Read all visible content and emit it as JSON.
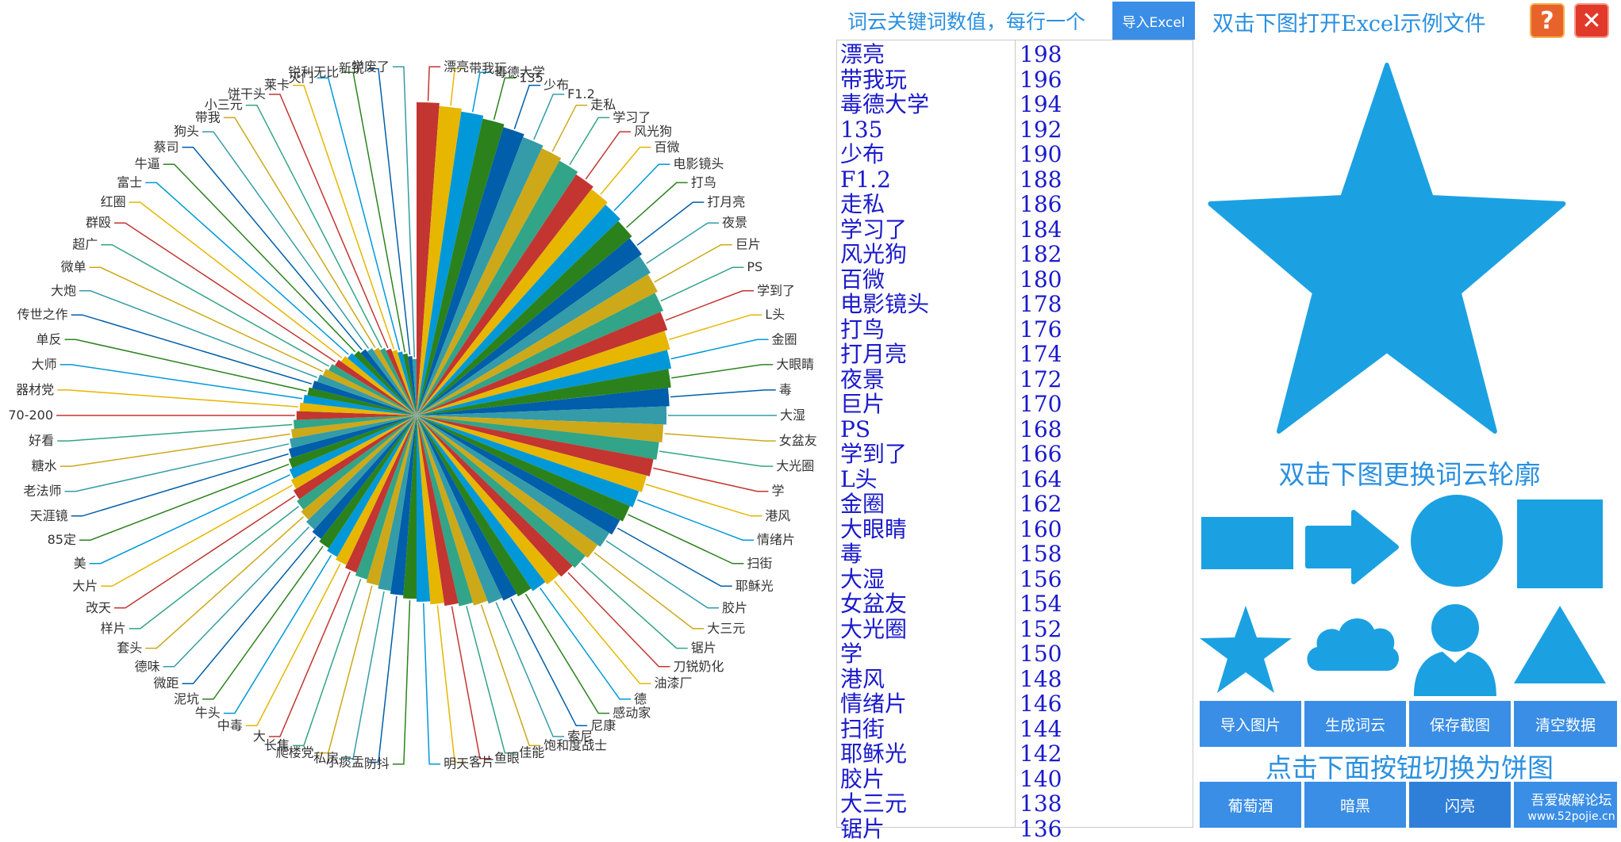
{
  "chart_data": {
    "type": "pie",
    "rose": true,
    "categories": [
      "漂亮",
      "带我玩",
      "毒德大学",
      "135",
      "少布",
      "F1.2",
      "走私",
      "学习了",
      "风光狗",
      "百微",
      "电影镜头",
      "打鸟",
      "打月亮",
      "夜景",
      "巨片",
      "PS",
      "学到了",
      "L头",
      "金圈",
      "大眼睛",
      "毒",
      "大湿",
      "女盆友",
      "大光圈",
      "学",
      "港风",
      "情绪片",
      "扫街",
      "耶稣光",
      "胶片",
      "大三元",
      "锯片",
      "刀锐奶化",
      "油漆厂",
      "德",
      "感动家",
      "尼康",
      "索尼",
      "饱和度战士",
      "佳能",
      "鱼眼",
      "客片",
      "明天",
      "防抖",
      "小痰盂",
      "私房",
      "爬楼党",
      "长焦",
      "大",
      "中毒",
      "牛头",
      "泥坑",
      "微距",
      "德味",
      "套头",
      "样片",
      "改天",
      "大片",
      "美",
      "85定",
      "天涯镜",
      "老法师",
      "糖水",
      "好看",
      "70-200",
      "器材党",
      "大师",
      "单反",
      "传世之作",
      "大炮",
      "微单",
      "超广",
      "群殴",
      "红圈",
      "富士",
      "牛逼",
      "蔡司",
      "狗头",
      "带我",
      "小三元",
      "饼干头",
      "莱卡",
      "灭门",
      "锐利无比",
      "新锐",
      "学废了"
    ],
    "values": [
      198,
      196,
      194,
      192,
      190,
      188,
      186,
      184,
      182,
      180,
      178,
      176,
      174,
      172,
      170,
      168,
      166,
      164,
      162,
      160,
      158,
      156,
      154,
      152,
      150,
      148,
      146,
      144,
      142,
      140,
      138,
      136,
      134,
      132,
      130,
      128,
      126,
      124,
      122,
      120,
      118,
      116,
      114,
      112,
      110,
      108,
      106,
      104,
      102,
      100,
      98,
      96,
      94,
      92,
      90,
      88,
      86,
      84,
      82,
      80,
      78,
      76,
      74,
      72,
      70,
      68,
      66,
      64,
      62,
      60,
      58,
      56,
      54,
      52,
      50,
      48,
      46,
      44,
      42,
      40,
      38,
      36,
      34,
      32,
      30,
      28
    ],
    "colors": [
      "#c23531",
      "#e6b600",
      "#0098d9",
      "#2b821d",
      "#005eaa",
      "#339ca8",
      "#cda819",
      "#32a487"
    ]
  },
  "keyword_panel": {
    "hint": "词云关键词数值，每行一个",
    "import_excel_label": "导入Excel",
    "rows": [
      {
        "word": "漂亮",
        "value": "198"
      },
      {
        "word": "带我玩",
        "value": "196"
      },
      {
        "word": "毒德大学",
        "value": "194"
      },
      {
        "word": "135",
        "value": "192"
      },
      {
        "word": "少布",
        "value": "190"
      },
      {
        "word": "F1.2",
        "value": "188"
      },
      {
        "word": "走私",
        "value": "186"
      },
      {
        "word": "学习了",
        "value": "184"
      },
      {
        "word": "风光狗",
        "value": "182"
      },
      {
        "word": "百微",
        "value": "180"
      },
      {
        "word": "电影镜头",
        "value": "178"
      },
      {
        "word": "打鸟",
        "value": "176"
      },
      {
        "word": "打月亮",
        "value": "174"
      },
      {
        "word": "夜景",
        "value": "172"
      },
      {
        "word": "巨片",
        "value": "170"
      },
      {
        "word": "PS",
        "value": "168"
      },
      {
        "word": "学到了",
        "value": "166"
      },
      {
        "word": "L头",
        "value": "164"
      },
      {
        "word": "金圈",
        "value": "162"
      },
      {
        "word": "大眼睛",
        "value": "160"
      },
      {
        "word": "毒",
        "value": "158"
      },
      {
        "word": "大湿",
        "value": "156"
      },
      {
        "word": "女盆友",
        "value": "154"
      },
      {
        "word": "大光圈",
        "value": "152"
      },
      {
        "word": "学",
        "value": "150"
      },
      {
        "word": "港风",
        "value": "148"
      },
      {
        "word": "情绪片",
        "value": "146"
      },
      {
        "word": "扫街",
        "value": "144"
      },
      {
        "word": "耶稣光",
        "value": "142"
      },
      {
        "word": "胶片",
        "value": "140"
      },
      {
        "word": "大三元",
        "value": "138"
      },
      {
        "word": "锯片",
        "value": "136"
      }
    ]
  },
  "right_panel": {
    "excel_hint": "双击下图打开Excel示例文件",
    "help_icon": "?",
    "close_icon": "✕",
    "shape_hint": "双击下图更换词云轮廓",
    "shapes": [
      "rectangle",
      "arrow",
      "circle",
      "square",
      "star",
      "cloud",
      "person",
      "triangle"
    ],
    "action_buttons": [
      "导入图片",
      "生成词云",
      "保存截图",
      "清空数据"
    ],
    "pie_hint": "点击下面按钮切换为饼图",
    "theme_buttons": [
      "葡萄酒",
      "暗黑",
      "闪亮"
    ],
    "watermark_line1": "吾爱破解论坛",
    "watermark_line2": "www.52pojie.cn",
    "accent_color": "#1ba1e2"
  }
}
